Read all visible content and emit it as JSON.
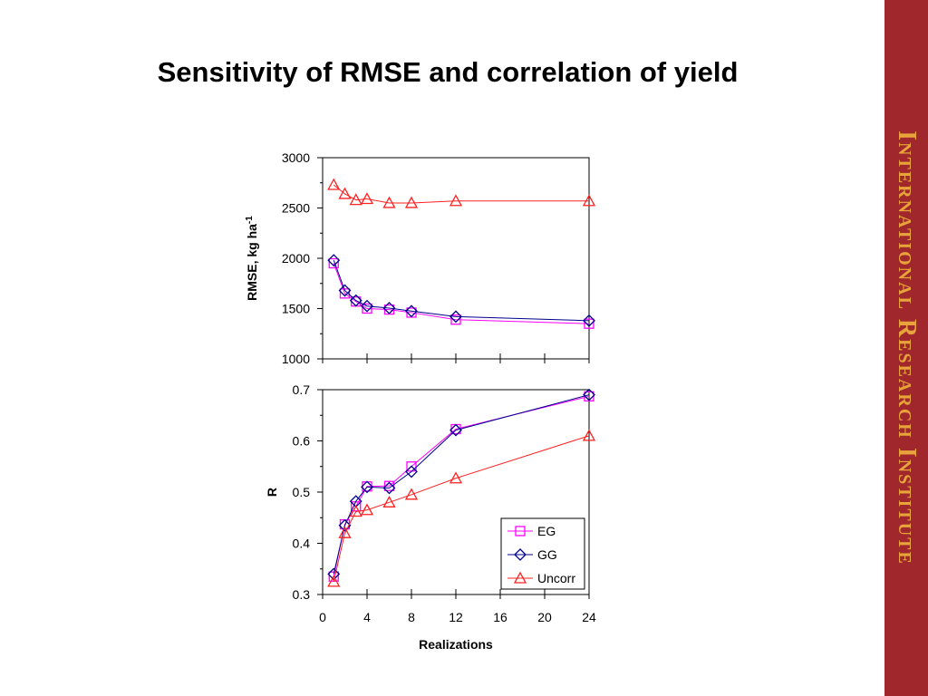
{
  "slide": {
    "title": "Sensitivity of RMSE and correlation of yield",
    "banner": "International Research Institute",
    "banner_color": "#a0282d",
    "banner_text_color": "#e8a33a"
  },
  "chart_data": [
    {
      "type": "line",
      "ylabel_main": "RMSE, kg ha",
      "ylabel_sup": "-1",
      "xlabel": "",
      "xlim": [
        0,
        24
      ],
      "ylim": [
        1000,
        3000
      ],
      "yticks": [
        "1000",
        "1500",
        "2000",
        "2500",
        "3000"
      ],
      "ytick_values": [
        1000,
        1500,
        2000,
        2500,
        3000
      ],
      "x": [
        1,
        2,
        3,
        4,
        6,
        8,
        12,
        24
      ],
      "grid": false,
      "series": [
        {
          "name": "EG",
          "color": "#ff00ff",
          "marker": "square",
          "values": [
            1950,
            1650,
            1570,
            1500,
            1490,
            1460,
            1390,
            1350
          ]
        },
        {
          "name": "GG",
          "color": "#00008b",
          "marker": "diamond",
          "values": [
            1980,
            1680,
            1580,
            1525,
            1505,
            1475,
            1420,
            1380
          ]
        },
        {
          "name": "Uncorr",
          "color": "#ff2020",
          "marker": "triangle",
          "values": [
            2730,
            2640,
            2580,
            2590,
            2550,
            2550,
            2570,
            2570
          ]
        }
      ]
    },
    {
      "type": "line",
      "ylabel": "R",
      "xlabel": "Realizations",
      "xlim": [
        0,
        24
      ],
      "xticks": [
        "0",
        "4",
        "8",
        "12",
        "16",
        "20",
        "24"
      ],
      "xtick_values": [
        0,
        4,
        8,
        12,
        16,
        20,
        24
      ],
      "ylim": [
        0.3,
        0.7
      ],
      "yticks": [
        "0.3",
        "0.4",
        "0.5",
        "0.6",
        "0.7"
      ],
      "ytick_values": [
        0.3,
        0.4,
        0.5,
        0.6,
        0.7
      ],
      "x": [
        1,
        2,
        3,
        4,
        6,
        8,
        12,
        24
      ],
      "grid": false,
      "legend_position": "bottom-right",
      "series": [
        {
          "name": "EG",
          "color": "#ff00ff",
          "marker": "square",
          "values": [
            0.335,
            0.437,
            0.472,
            0.511,
            0.512,
            0.55,
            0.623,
            0.687
          ]
        },
        {
          "name": "GG",
          "color": "#00008b",
          "marker": "diamond",
          "values": [
            0.34,
            0.435,
            0.482,
            0.51,
            0.508,
            0.54,
            0.621,
            0.69
          ]
        },
        {
          "name": "Uncorr",
          "color": "#ff2020",
          "marker": "triangle",
          "values": [
            0.325,
            0.42,
            0.462,
            0.465,
            0.48,
            0.495,
            0.527,
            0.61
          ]
        }
      ]
    }
  ]
}
